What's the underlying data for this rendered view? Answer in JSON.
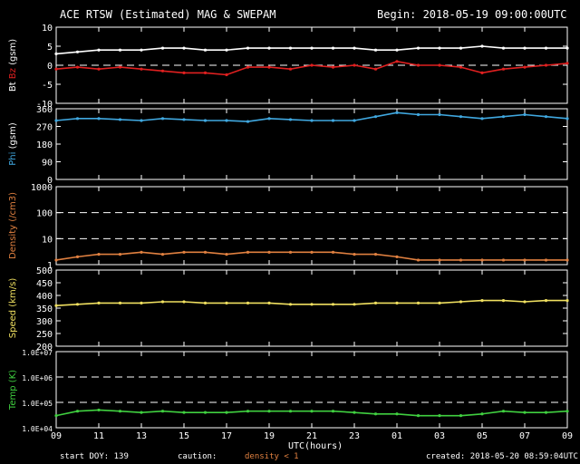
{
  "header": {
    "title": "ACE RTSW (Estimated) MAG & SWEPAM",
    "begin": "Begin: 2018-05-19 09:00:00UTC"
  },
  "footer": {
    "xlabel": "UTC(hours)",
    "start_doy": "start DOY: 139",
    "caution": "caution:",
    "density_note": "density < 1",
    "created": "created: 2018-05-20 08:59:04UTC"
  },
  "colors": {
    "bt": "#ffffff",
    "bz": "#e02020",
    "phi": "#40a8e0",
    "density": "#e08040",
    "speed": "#f0e060",
    "temp": "#40d040",
    "frame": "#ffffff"
  },
  "chart_data": {
    "type": "line",
    "x_range_hours": [
      0,
      24
    ],
    "x_ticks": [
      "09",
      "11",
      "13",
      "15",
      "17",
      "19",
      "21",
      "23",
      "01",
      "03",
      "05",
      "07",
      "09"
    ],
    "panels": [
      {
        "id": "mag",
        "ylabel_parts": [
          "Bt",
          "Bz",
          "(gsm)"
        ],
        "scale": "linear",
        "ylim": [
          -10,
          10
        ],
        "yticks": [
          "-10",
          "-5",
          "0",
          "5",
          "10"
        ],
        "dashed_at": [
          0
        ],
        "series": [
          {
            "name": "Bt",
            "color": "#ffffff",
            "x": [
              0,
              1,
              2,
              3,
              4,
              5,
              6,
              7,
              8,
              9,
              10,
              11,
              12,
              13,
              14,
              15,
              16,
              17,
              18,
              19,
              20,
              21,
              22,
              23,
              24
            ],
            "y": [
              3,
              3.5,
              4,
              4,
              4,
              4.5,
              4.5,
              4,
              4,
              4.5,
              4.5,
              4.5,
              4.5,
              4.5,
              4.5,
              4,
              4,
              4.5,
              4.5,
              4.5,
              5,
              4.5,
              4.5,
              4.5,
              4.5
            ]
          },
          {
            "name": "Bz",
            "color": "#e02020",
            "x": [
              0,
              1,
              2,
              3,
              4,
              5,
              6,
              7,
              8,
              9,
              10,
              11,
              12,
              13,
              14,
              15,
              16,
              17,
              18,
              19,
              20,
              21,
              22,
              23,
              24
            ],
            "y": [
              -1,
              -0.5,
              -1,
              -0.5,
              -1,
              -1.5,
              -2,
              -2,
              -2.5,
              -0.5,
              -0.5,
              -1,
              0,
              -0.5,
              0,
              -1,
              1,
              0,
              0,
              -0.5,
              -2,
              -1,
              -0.5,
              0,
              0.5
            ]
          }
        ]
      },
      {
        "id": "phi",
        "ylabel_parts": [
          "Phi",
          "(gsm)"
        ],
        "scale": "linear",
        "ylim": [
          0,
          360
        ],
        "yticks": [
          "0",
          "90",
          "180",
          "270",
          "360"
        ],
        "dashed_at": [],
        "series": [
          {
            "name": "Phi",
            "color": "#40a8e0",
            "x": [
              0,
              1,
              2,
              3,
              4,
              5,
              6,
              7,
              8,
              9,
              10,
              11,
              12,
              13,
              14,
              15,
              16,
              17,
              18,
              19,
              20,
              21,
              22,
              23,
              24
            ],
            "y": [
              300,
              310,
              310,
              305,
              300,
              310,
              305,
              300,
              300,
              295,
              310,
              305,
              300,
              300,
              300,
              320,
              340,
              330,
              330,
              320,
              310,
              320,
              330,
              320,
              310
            ]
          }
        ]
      },
      {
        "id": "density",
        "ylabel_parts": [
          "Density",
          "(/cm3)"
        ],
        "scale": "log",
        "ylim": [
          1,
          1000
        ],
        "yticks": [
          "1",
          "10",
          "100",
          "1000"
        ],
        "dashed_at": [
          10,
          100
        ],
        "series": [
          {
            "name": "Density",
            "color": "#e08040",
            "x": [
              0,
              1,
              2,
              3,
              4,
              5,
              6,
              7,
              8,
              9,
              10,
              11,
              12,
              13,
              14,
              15,
              16,
              17,
              18,
              19,
              20,
              21,
              22,
              23,
              24
            ],
            "y": [
              1.5,
              2,
              2.5,
              2.5,
              3,
              2.5,
              3,
              3,
              2.5,
              3,
              3,
              3,
              3,
              3,
              2.5,
              2.5,
              2,
              1.5,
              1.5,
              1.5,
              1.5,
              1.5,
              1.5,
              1.5,
              1.5
            ]
          }
        ]
      },
      {
        "id": "speed",
        "ylabel_parts": [
          "Speed",
          "(km/s)"
        ],
        "scale": "linear",
        "ylim": [
          200,
          500
        ],
        "yticks": [
          "200",
          "250",
          "300",
          "350",
          "400",
          "450",
          "500"
        ],
        "dashed_at": [],
        "series": [
          {
            "name": "Speed",
            "color": "#f0e060",
            "x": [
              0,
              1,
              2,
              3,
              4,
              5,
              6,
              7,
              8,
              9,
              10,
              11,
              12,
              13,
              14,
              15,
              16,
              17,
              18,
              19,
              20,
              21,
              22,
              23,
              24
            ],
            "y": [
              360,
              365,
              370,
              370,
              370,
              375,
              375,
              370,
              370,
              370,
              370,
              365,
              365,
              365,
              365,
              370,
              370,
              370,
              370,
              375,
              380,
              380,
              375,
              380,
              380
            ]
          }
        ]
      },
      {
        "id": "temp",
        "ylabel_parts": [
          "Temp",
          "(K)"
        ],
        "scale": "log",
        "ylim": [
          10000,
          10000000
        ],
        "yticks": [
          "1.0E+04",
          "1.0E+05",
          "1.0E+06",
          "1.0E+07"
        ],
        "dashed_at": [
          100000,
          1000000
        ],
        "series": [
          {
            "name": "Temp",
            "color": "#40d040",
            "x": [
              0,
              1,
              2,
              3,
              4,
              5,
              6,
              7,
              8,
              9,
              10,
              11,
              12,
              13,
              14,
              15,
              16,
              17,
              18,
              19,
              20,
              21,
              22,
              23,
              24
            ],
            "y": [
              30000,
              45000,
              50000,
              45000,
              40000,
              45000,
              40000,
              40000,
              40000,
              45000,
              45000,
              45000,
              45000,
              45000,
              40000,
              35000,
              35000,
              30000,
              30000,
              30000,
              35000,
              45000,
              40000,
              40000,
              45000
            ]
          }
        ]
      }
    ]
  }
}
